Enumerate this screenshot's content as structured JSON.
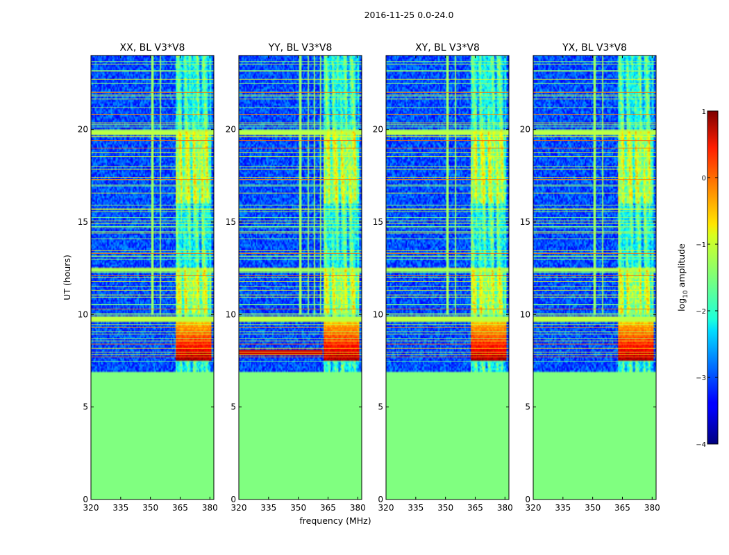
{
  "chart_data": {
    "type": "heatmap",
    "title": "2016-11-25 0.0-24.0",
    "xlabel": "frequency (MHz)",
    "ylabel": "UT (hours)",
    "xlim": [
      320,
      382
    ],
    "ylim": [
      0,
      24
    ],
    "xticks": [
      320,
      335,
      350,
      365,
      380
    ],
    "yticks": [
      0,
      5,
      10,
      15,
      20
    ],
    "panels": [
      {
        "title": "XX, BL V3*V8",
        "pol": "XX"
      },
      {
        "title": "YY, BL V3*V8",
        "pol": "YY"
      },
      {
        "title": "XY, BL V3*V8",
        "pol": "XY"
      },
      {
        "title": "YX, BL V3*V8",
        "pol": "YX"
      }
    ],
    "no_data_below_ut": 6.9,
    "no_data_value": -1.5,
    "background_value": -3.0,
    "strong_band_mhz": [
      362.5,
      381.0
    ],
    "bright_columns_mhz": [
      364,
      368.5,
      373,
      377.5
    ],
    "rfi_band_hours": [
      7.55,
      9.6
    ],
    "rfi_peak_value": 0.9,
    "colorbar": {
      "label": "log",
      "label_sub": "10",
      "label_suffix": " amplitude",
      "min": -4,
      "max": 1,
      "ticks": [
        -4,
        -3,
        -2,
        -1,
        0,
        1
      ],
      "tick_labels": [
        "−4",
        "−3",
        "−2",
        "−1",
        "0",
        "1"
      ],
      "colormap": "jet"
    }
  }
}
